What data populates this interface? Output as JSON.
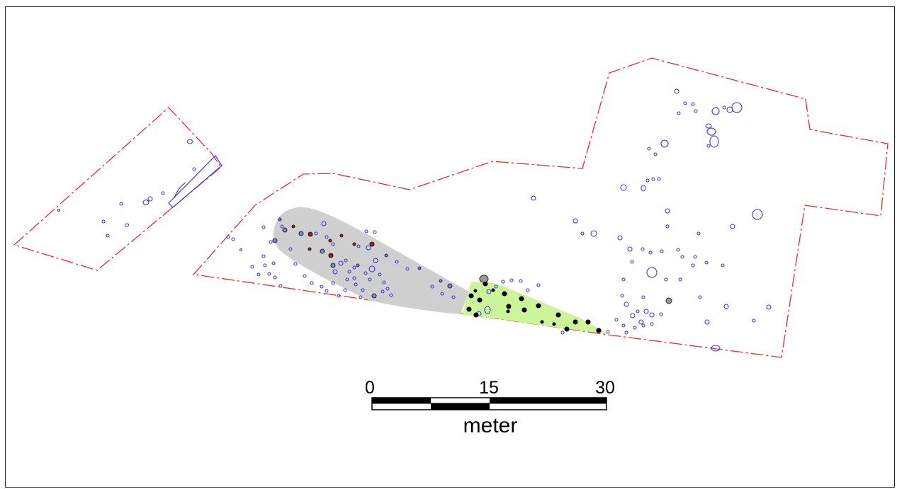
{
  "map": {
    "colors": {
      "boundary": "#e03030",
      "feature": "#3a3ad8",
      "gray_area": "#cfcfcf",
      "green_area": "#ccf59a",
      "red_feature": "#a01818",
      "black_feature": "#000000",
      "frame": "#222222"
    },
    "scale_bar": {
      "labels": [
        "0",
        "15",
        "30"
      ],
      "unit": "meter"
    }
  }
}
